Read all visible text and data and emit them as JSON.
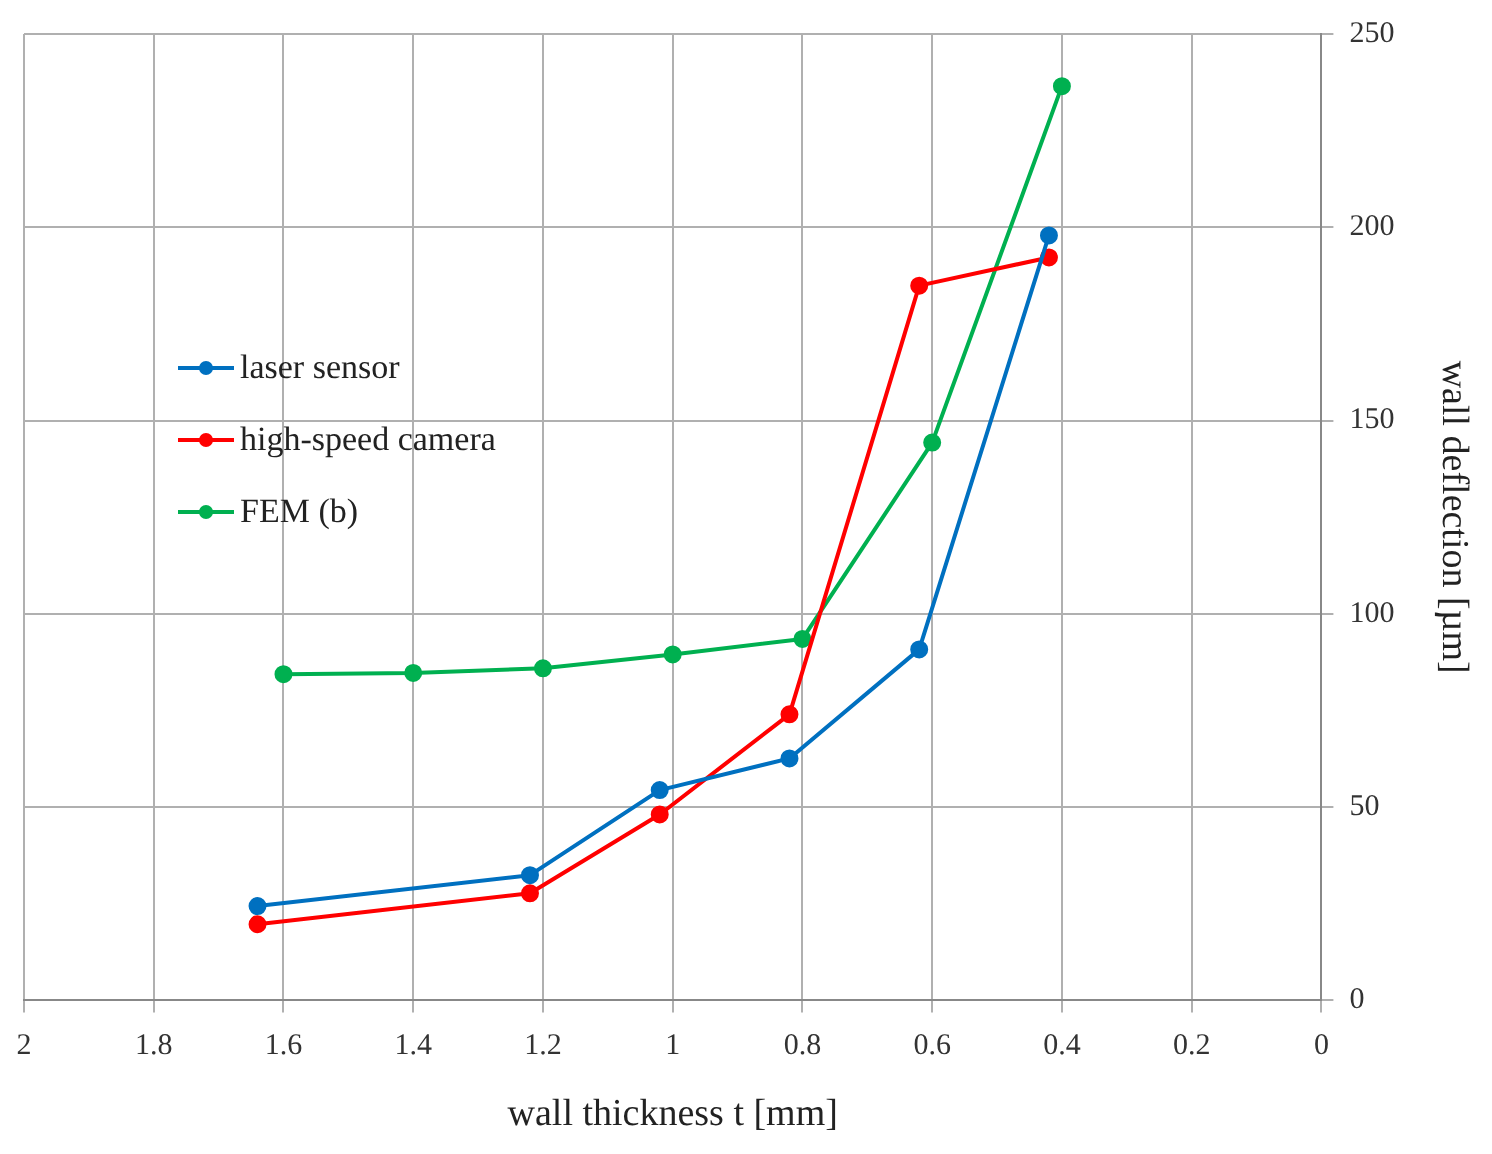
{
  "chart_data": {
    "type": "line",
    "xlabel": "wall thickness t [mm]",
    "ylabel": "wall deflection [µm]",
    "xlim": [
      2,
      0
    ],
    "xticks": [
      2,
      1.8,
      1.6,
      1.4,
      1.2,
      1,
      0.8,
      0.6,
      0.4,
      0.2,
      0
    ],
    "ylim": [
      0,
      250
    ],
    "yticks": [
      0,
      50,
      100,
      150,
      200,
      250
    ],
    "grid": true,
    "legend": "left",
    "marker": "circle",
    "line_style": "solid",
    "series": [
      {
        "name": "laser sensor",
        "color": "#0070c0",
        "x": [
          1.64,
          1.22,
          1.02,
          0.82,
          0.62,
          0.42
        ],
        "values": [
          24.4,
          32.4,
          54.4,
          62.6,
          90.8,
          197.9
        ]
      },
      {
        "name": "high-speed camera",
        "color": "#ff0000",
        "x": [
          1.64,
          1.22,
          1.02,
          0.82,
          0.62,
          0.42
        ],
        "values": [
          19.7,
          27.7,
          48.1,
          74,
          184.9,
          192.2
        ]
      },
      {
        "name": "FEM (b)",
        "color": "#00b050",
        "x": [
          1.6,
          1.4,
          1.2,
          1,
          0.8,
          0.6,
          0.4
        ],
        "values": [
          84.4,
          84.7,
          85.9,
          89.5,
          93.5,
          144.3,
          236.5
        ]
      }
    ]
  }
}
